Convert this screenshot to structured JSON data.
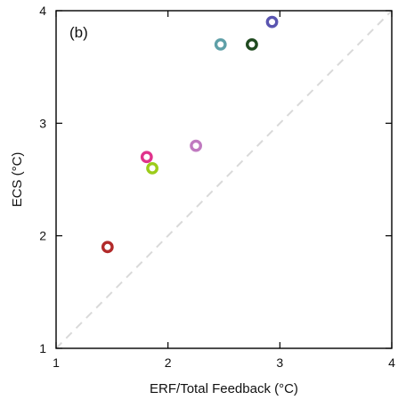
{
  "chart_data": {
    "type": "scatter",
    "panel_label": "(b)",
    "xlabel": "ERF/Total Feedback (°C)",
    "ylabel": "ECS (°C)",
    "xlim": [
      1,
      4
    ],
    "ylim": [
      1,
      4
    ],
    "xticks": [
      "1",
      "2",
      "3",
      "4"
    ],
    "yticks": [
      "1",
      "2",
      "3",
      "4"
    ],
    "grid": false,
    "reference_line": "1:1 dashed",
    "points": [
      {
        "x": 1.46,
        "y": 1.9,
        "color": "#b22a2a"
      },
      {
        "x": 1.81,
        "y": 2.7,
        "color": "#e0338c"
      },
      {
        "x": 1.86,
        "y": 2.6,
        "color": "#9ccc1a"
      },
      {
        "x": 2.25,
        "y": 2.8,
        "color": "#c07ac0"
      },
      {
        "x": 2.47,
        "y": 3.7,
        "color": "#5fa0a8"
      },
      {
        "x": 2.75,
        "y": 3.7,
        "color": "#1f4a1f"
      },
      {
        "x": 2.93,
        "y": 3.9,
        "color": "#5a55b0"
      }
    ]
  }
}
